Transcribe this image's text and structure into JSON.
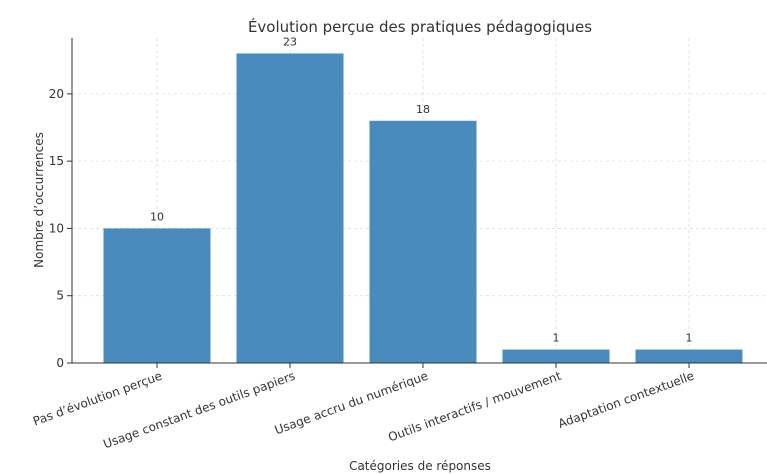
{
  "chart_data": {
    "type": "bar",
    "title": "Évolution perçue des pratiques pédagogiques",
    "xlabel": "Catégories de réponses",
    "ylabel": "Nombre d’occurrences",
    "categories": [
      "Pas d’évolution perçue",
      "Usage constant des outils papiers",
      "Usage accru du numérique",
      "Outils interactifs / mouvement",
      "Adaptation contextuelle"
    ],
    "values": [
      10,
      23,
      18,
      1,
      1
    ],
    "color": "#4a8bbe",
    "ylim": [
      0,
      24.15
    ],
    "yticks": [
      0,
      5,
      10,
      15,
      20
    ],
    "grid": true
  }
}
